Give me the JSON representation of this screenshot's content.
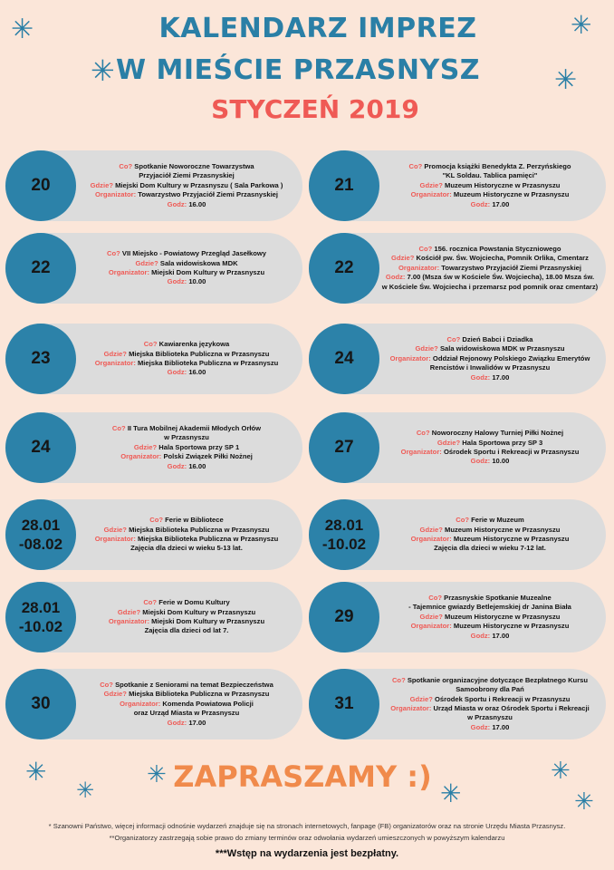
{
  "header": {
    "title_line1": "KALENDARZ IMPREZ",
    "title_line2": "W MIEŚCIE PRZASNYSZ",
    "month": "STYCZEŃ 2019"
  },
  "labels": {
    "co": "Co?",
    "gdzie": "Gdzie?",
    "organizator": "Organizator:",
    "godz": "Godz:"
  },
  "events": [
    {
      "date": "20",
      "co": "Spotkanie Noworoczne Towarzystwa",
      "co2": "Przyjaciół Ziemi Przasnyskiej",
      "gdzie": "Miejski Dom Kultury w Przasnyszu ( Sala Parkowa )",
      "organizator": "Towarzystwo Przyjaciół Ziemi Przasnyskiej",
      "godz": "16.00"
    },
    {
      "date": "21",
      "co": "Promocja książki Benedykta Z. Perzyńskiego",
      "co2": "\"KL Soldau. Tablica pamięci\"",
      "gdzie": "Muzeum Historyczne w Przasnyszu",
      "organizator": "Muzeum Historyczne w Przasnyszu",
      "godz": "17.00"
    },
    {
      "date": "22",
      "co": "VII Miejsko - Powiatowy Przegląd Jasełkowy",
      "gdzie": "Sala widowiskowa MDK",
      "organizator": "Miejski Dom Kultury w Przasnyszu",
      "godz": "10.00"
    },
    {
      "date": "22",
      "co": "156. rocznica Powstania Styczniowego",
      "gdzie": "Kościół pw. Św. Wojciecha, Pomnik Orlika, Cmentarz",
      "organizator": "Towarzystwo Przyjaciół Ziemi Przasnyskiej",
      "godz": "7.00 (Msza św w Kościele Św. Wojciecha), 18.00 Msza św.",
      "godz2": "w Kościele Św. Wojciecha i przemarsz pod pomnik oraz cmentarz)"
    },
    {
      "date": "23",
      "co": "Kawiarenka językowa",
      "gdzie": "Miejska Biblioteka Publiczna w Przasnyszu",
      "organizator": "Miejska Biblioteka Publiczna w Przasnyszu",
      "godz": "16.00"
    },
    {
      "date": "24",
      "co": "Dzień Babci i Dziadka",
      "gdzie": "Sala widowiskowa MDK w Przasnyszu",
      "organizator": "Oddział Rejonowy Polskiego Związku Emerytów",
      "organizator2": "Rencistów i Inwalidów w Przasnyszu",
      "godz": "17.00"
    },
    {
      "date": "24",
      "co": "II Tura Mobilnej Akademii Młodych Orłów",
      "co2": "w Przasnyszu",
      "gdzie": "Hala Sportowa przy SP 1",
      "organizator": "Polski Związek Piłki Nożnej",
      "godz": "16.00"
    },
    {
      "date": "27",
      "co": "Noworoczny Halowy Turniej Piłki Nożnej",
      "gdzie": "Hala Sportowa przy SP 3",
      "organizator": "Ośrodek Sportu i Rekreacji w Przasnyszu",
      "godz": "10.00"
    },
    {
      "date": "28.01",
      "date2": "-08.02",
      "co": "Ferie w Bibliotece",
      "gdzie": "Miejska Biblioteka Publiczna w Przasnyszu",
      "organizator": "Miejska Biblioteka Publiczna w Przasnyszu",
      "extra": "Zajęcia dla dzieci w wieku 5-13 lat."
    },
    {
      "date": "28.01",
      "date2": "-10.02",
      "co": "Ferie w Muzeum",
      "gdzie": "Muzeum Historyczne w Przasnyszu",
      "organizator": "Muzeum Historyczne w Przasnyszu",
      "extra": "Zajęcia dla dzieci w wieku 7-12 lat."
    },
    {
      "date": "28.01",
      "date2": "-10.02",
      "co": "Ferie w Domu Kultury",
      "gdzie": "Miejski Dom Kultury w Przasnyszu",
      "organizator": "Miejski Dom Kultury w Przasnyszu",
      "extra": "Zajęcia dla dzieci od lat 7."
    },
    {
      "date": "29",
      "co": "Przasnyskie Spotkanie Muzealne",
      "co2": "- Tajemnice gwiazdy Betlejemskiej dr Janina Biała",
      "gdzie": "Muzeum Historyczne w Przasnyszu",
      "organizator": "Muzeum Historyczne w Przasnyszu",
      "godz": "17.00"
    },
    {
      "date": "30",
      "co": "Spotkanie z Seniorami na temat Bezpieczeństwa",
      "gdzie": "Miejska Biblioteka Publiczna w Przasnyszu",
      "organizator": "Komenda Powiatowa Policji",
      "organizator2": "oraz Urząd Miasta w Przasnyszu",
      "godz": "17.00"
    },
    {
      "date": "31",
      "co": "Spotkanie organizacyjne dotyczące Bezpłatnego Kursu",
      "co2": "Samoobrony dla Pań",
      "gdzie": "Ośrodek Sportu i Rekreacji w Przasnyszu",
      "organizator": "Urząd Miasta w  oraz Ośrodek Sportu i Rekreacji",
      "organizator2": "w Przasnyszu",
      "godz": "17.00"
    }
  ],
  "footer": {
    "cta": "ZAPRASZAMY :)",
    "note1": "* Szanowni Państwo, więcej informacji odnośnie wydarzeń znajduje się na stronach internetowych, fanpage (FB) organizatorów oraz na stronie Urzędu Miasta Przasnysz.",
    "note2": "**Organizatorzy zastrzegają sobie prawo do zmiany terminów oraz odwołania wydarzeń umieszczonych w powyższym kalendarzu",
    "free": "***Wstęp na wydarzenia jest bezpłatny."
  },
  "decoration": {
    "star_glyph": "✳",
    "star_icon": "snowflake-icon"
  }
}
